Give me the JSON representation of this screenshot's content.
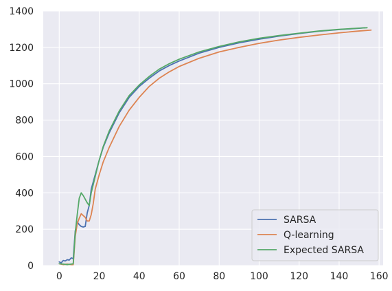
{
  "chart_data": {
    "type": "line",
    "title": "",
    "xlabel": "",
    "ylabel": "",
    "xlim": [
      -8,
      162
    ],
    "ylim": [
      0,
      1400
    ],
    "xticks": [
      0,
      20,
      40,
      60,
      80,
      100,
      120,
      140,
      160
    ],
    "yticks": [
      0,
      200,
      400,
      600,
      800,
      1000,
      1200,
      1400
    ],
    "grid": true,
    "legend_position": "lower-right",
    "background_color": "#eaeaf2",
    "grid_color": "#ffffff",
    "series": [
      {
        "name": "SARSA",
        "color": "#4c72b0",
        "points": [
          [
            0,
            20
          ],
          [
            1,
            15
          ],
          [
            2,
            28
          ],
          [
            3,
            25
          ],
          [
            4,
            32
          ],
          [
            5,
            30
          ],
          [
            6,
            42
          ],
          [
            7,
            38
          ],
          [
            8,
            190
          ],
          [
            9,
            240
          ],
          [
            10,
            225
          ],
          [
            11,
            215
          ],
          [
            12,
            212
          ],
          [
            13,
            215
          ],
          [
            14,
            290
          ],
          [
            15,
            330
          ],
          [
            16,
            420
          ],
          [
            18,
            500
          ],
          [
            20,
            580
          ],
          [
            22,
            650
          ],
          [
            25,
            730
          ],
          [
            30,
            840
          ],
          [
            35,
            925
          ],
          [
            40,
            985
          ],
          [
            45,
            1030
          ],
          [
            50,
            1070
          ],
          [
            55,
            1100
          ],
          [
            60,
            1125
          ],
          [
            70,
            1168
          ],
          [
            80,
            1200
          ],
          [
            90,
            1225
          ],
          [
            100,
            1245
          ],
          [
            110,
            1262
          ],
          [
            120,
            1276
          ],
          [
            130,
            1289
          ],
          [
            140,
            1298
          ],
          [
            150,
            1305
          ],
          [
            153,
            1308
          ]
        ]
      },
      {
        "name": "Q-learning",
        "color": "#dd8452",
        "points": [
          [
            0,
            10
          ],
          [
            2,
            5
          ],
          [
            4,
            8
          ],
          [
            6,
            5
          ],
          [
            7,
            5
          ],
          [
            8,
            160
          ],
          [
            9,
            230
          ],
          [
            10,
            260
          ],
          [
            11,
            285
          ],
          [
            12,
            275
          ],
          [
            13,
            265
          ],
          [
            14,
            245
          ],
          [
            15,
            245
          ],
          [
            16,
            280
          ],
          [
            17,
            340
          ],
          [
            18,
            420
          ],
          [
            20,
            500
          ],
          [
            22,
            570
          ],
          [
            25,
            650
          ],
          [
            30,
            765
          ],
          [
            35,
            855
          ],
          [
            40,
            925
          ],
          [
            45,
            985
          ],
          [
            50,
            1030
          ],
          [
            55,
            1065
          ],
          [
            60,
            1095
          ],
          [
            70,
            1140
          ],
          [
            80,
            1175
          ],
          [
            90,
            1200
          ],
          [
            100,
            1222
          ],
          [
            110,
            1240
          ],
          [
            120,
            1255
          ],
          [
            130,
            1268
          ],
          [
            140,
            1280
          ],
          [
            150,
            1290
          ],
          [
            156,
            1295
          ]
        ]
      },
      {
        "name": "Expected SARSA",
        "color": "#55a868",
        "points": [
          [
            0,
            10
          ],
          [
            2,
            8
          ],
          [
            4,
            5
          ],
          [
            6,
            8
          ],
          [
            7,
            10
          ],
          [
            8,
            180
          ],
          [
            9,
            280
          ],
          [
            10,
            370
          ],
          [
            11,
            400
          ],
          [
            12,
            385
          ],
          [
            13,
            365
          ],
          [
            14,
            345
          ],
          [
            15,
            330
          ],
          [
            16,
            400
          ],
          [
            18,
            490
          ],
          [
            20,
            580
          ],
          [
            22,
            655
          ],
          [
            25,
            740
          ],
          [
            30,
            850
          ],
          [
            35,
            935
          ],
          [
            40,
            993
          ],
          [
            45,
            1040
          ],
          [
            50,
            1080
          ],
          [
            55,
            1110
          ],
          [
            60,
            1135
          ],
          [
            70,
            1175
          ],
          [
            80,
            1205
          ],
          [
            90,
            1230
          ],
          [
            100,
            1250
          ],
          [
            110,
            1265
          ],
          [
            120,
            1278
          ],
          [
            130,
            1290
          ],
          [
            140,
            1299
          ],
          [
            150,
            1306
          ],
          [
            154,
            1308
          ]
        ]
      }
    ]
  }
}
